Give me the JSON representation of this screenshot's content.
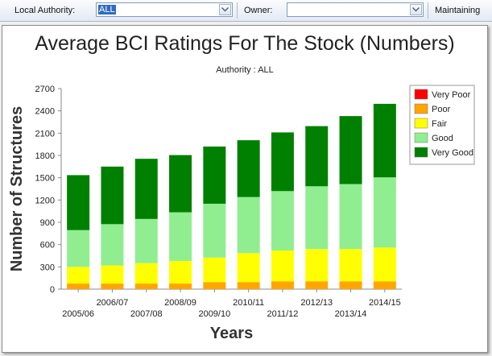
{
  "toolbar": {
    "local_authority_label": "Local Authority:",
    "local_authority_value": "ALL",
    "owner_label": "Owner:",
    "owner_value": "",
    "maintaining_label": "Maintaining"
  },
  "chart_data": {
    "type": "bar",
    "stacked": true,
    "title": "Average BCI Ratings For The Stock (Numbers)",
    "subtitle": "Authority : ALL",
    "xlabel": "Years",
    "ylabel": "Number of Structures",
    "ylim": [
      0,
      2700
    ],
    "yticks": [
      0,
      300,
      600,
      900,
      1200,
      1500,
      1800,
      2100,
      2400,
      2700
    ],
    "grid": false,
    "legend_position": "top-right",
    "categories": [
      "2005/06",
      "2006/07",
      "2007/08",
      "2008/09",
      "2009/10",
      "2010/11",
      "2011/12",
      "2012/13",
      "2013/14",
      "2014/15"
    ],
    "series": [
      {
        "name": "Very Poor",
        "color": "#ff0000",
        "values": [
          0,
          0,
          0,
          0,
          0,
          0,
          0,
          0,
          0,
          0
        ]
      },
      {
        "name": "Poor",
        "color": "#ffa500",
        "values": [
          75,
          75,
          75,
          75,
          95,
          95,
          105,
          105,
          105,
          105
        ]
      },
      {
        "name": "Fair",
        "color": "#ffff00",
        "values": [
          225,
          245,
          275,
          305,
          330,
          390,
          415,
          435,
          435,
          455
        ]
      },
      {
        "name": "Good",
        "color": "#90ee90",
        "values": [
          495,
          555,
          595,
          655,
          725,
          755,
          800,
          845,
          875,
          945
        ]
      },
      {
        "name": "Very Good",
        "color": "#008000",
        "values": [
          740,
          775,
          810,
          770,
          770,
          765,
          790,
          810,
          915,
          990
        ]
      }
    ]
  }
}
